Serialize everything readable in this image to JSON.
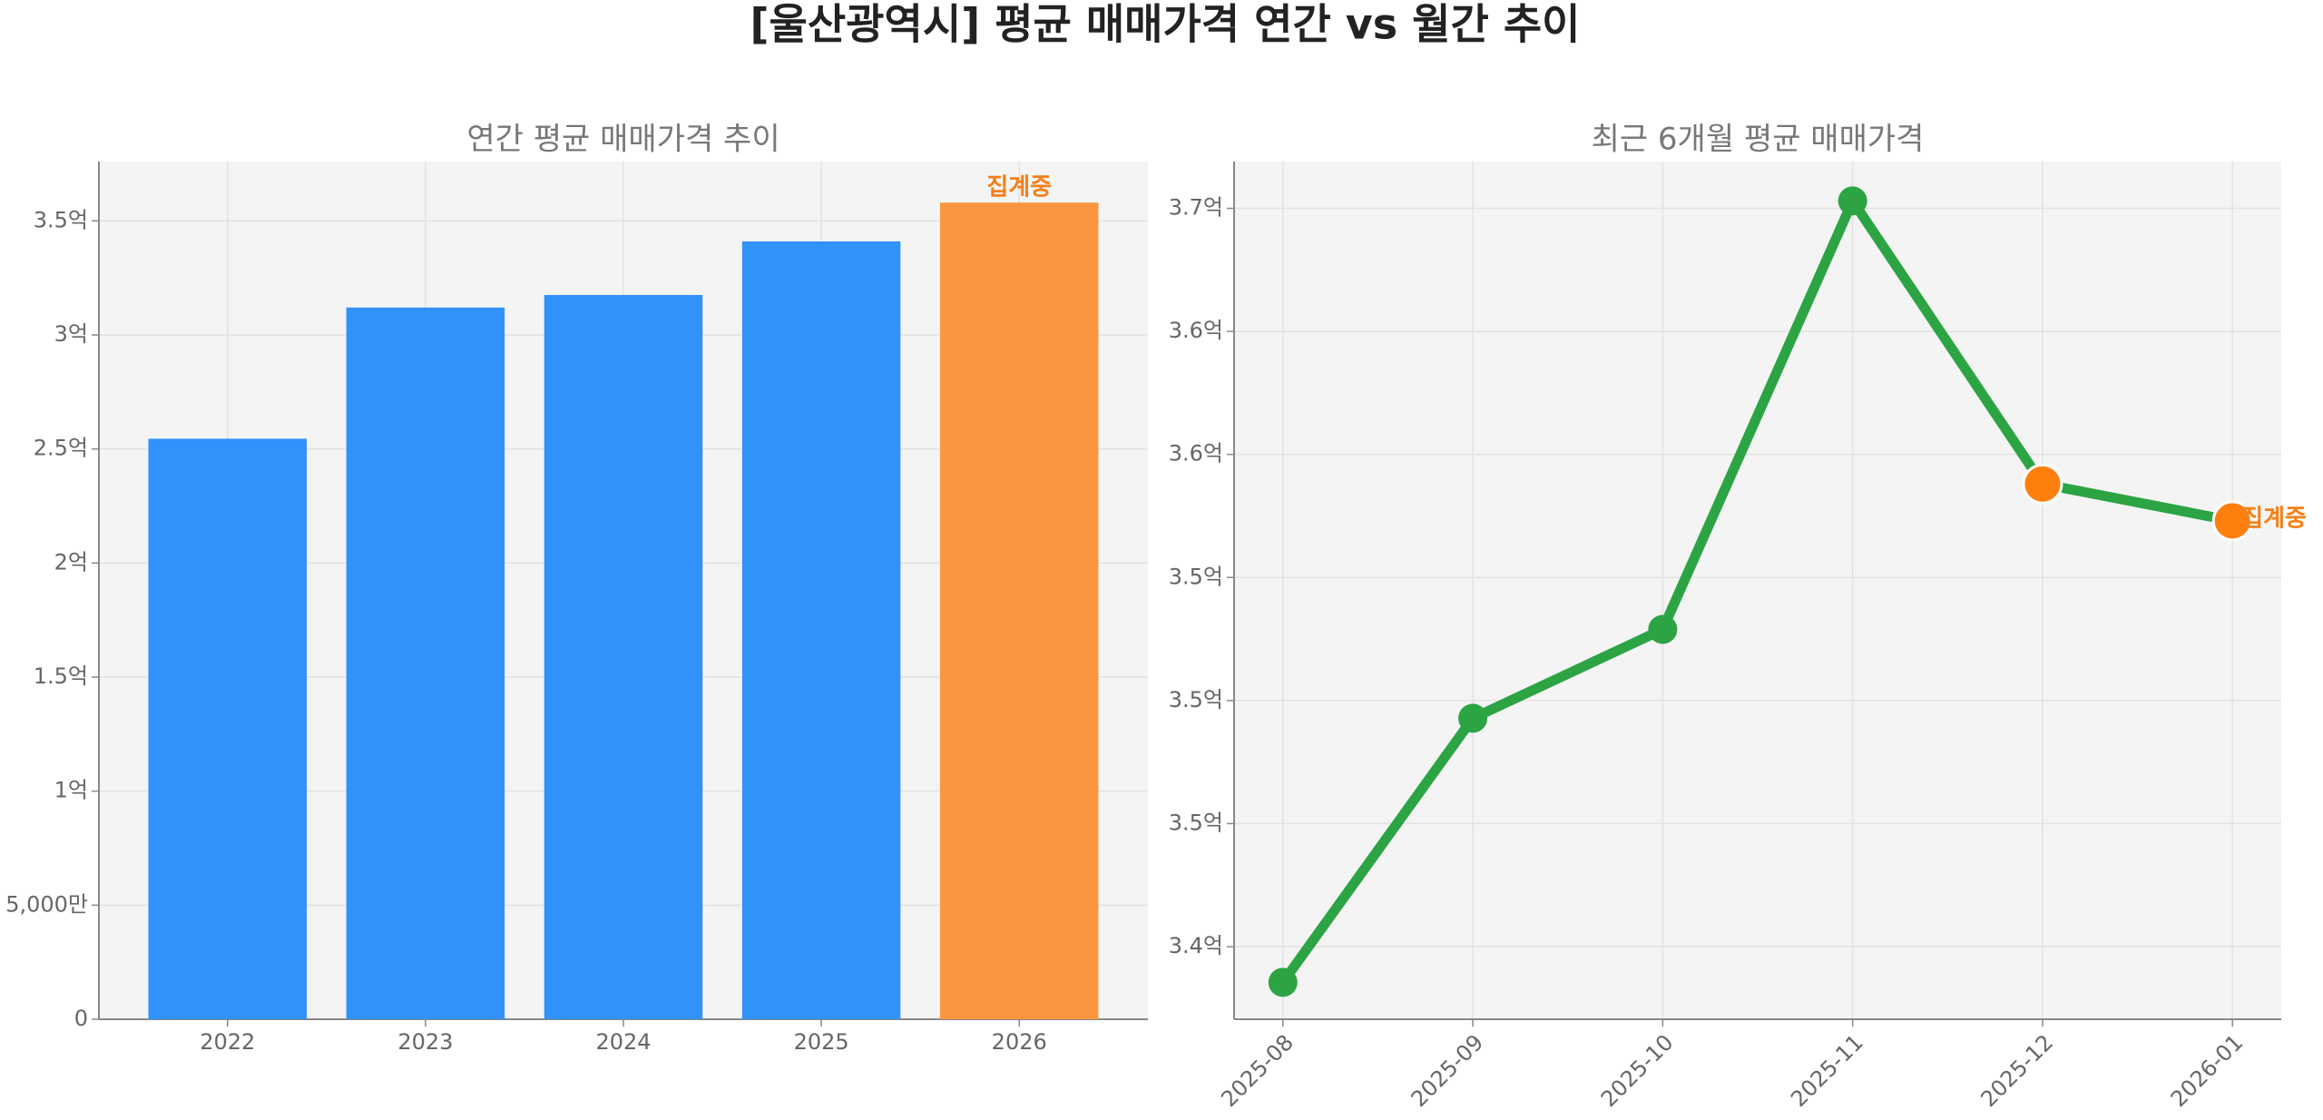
{
  "title": "[울산광역시] 평균 매매가격 연간 vs 월간 추이",
  "chart_data": [
    {
      "type": "bar",
      "title": "연간 평균 매매가격 추이",
      "categories": [
        "2022",
        "2023",
        "2024",
        "2025",
        "2026"
      ],
      "values": [
        2.545,
        3.12,
        3.175,
        3.41,
        3.58
      ],
      "colors": [
        "#3192fc",
        "#3192fc",
        "#3192fc",
        "#3192fc",
        "#f9963f"
      ],
      "annotation": "집계중",
      "annotation_color": "#f57f17",
      "ylim": [
        0,
        3.76
      ],
      "yticks": [
        0,
        {
          "value": 0.5,
          "label": "5,000만"
        },
        {
          "value": 1,
          "label": "1억"
        },
        {
          "value": 1.5,
          "label": "1.5억"
        },
        {
          "value": 2,
          "label": "2억"
        },
        {
          "value": 2.5,
          "label": "2.5억"
        },
        {
          "value": 3,
          "label": "3억"
        },
        {
          "value": 3.5,
          "label": "3.5억"
        }
      ],
      "grid": true
    },
    {
      "type": "line",
      "title": "최근 6개월 평균 매매가격",
      "categories": [
        "2025-08",
        "2025-09",
        "2025-10",
        "2025-11",
        "2025-12",
        "2026-01"
      ],
      "values": [
        3.3855,
        3.4928,
        3.5289,
        3.703,
        3.588,
        3.573
      ],
      "color": "#2ca444",
      "point_colors": [
        "#2ca444",
        "#2ca444",
        "#2ca444",
        "#2ca444",
        "#ff7f0e",
        "#ff7f0e"
      ],
      "annotation": "집계중",
      "annotation_color": "#f57f17",
      "ylim": [
        3.3705,
        3.719
      ],
      "yticks": [
        {
          "value": 3.4,
          "label": "3.4억"
        },
        {
          "value": 3.45,
          "label": "3.5억"
        },
        {
          "value": 3.5,
          "label": "3.5억"
        },
        {
          "value": 3.55,
          "label": "3.5억"
        },
        {
          "value": 3.6,
          "label": "3.6억"
        },
        {
          "value": 3.65,
          "label": "3.6억"
        },
        {
          "value": 3.7,
          "label": "3.7억"
        }
      ],
      "grid": true
    }
  ]
}
